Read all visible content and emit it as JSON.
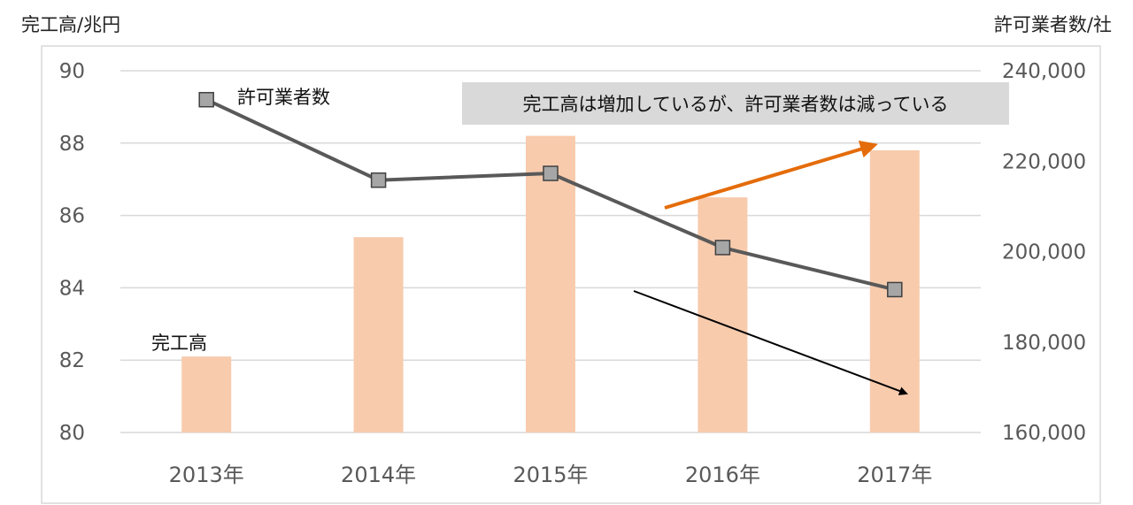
{
  "chart_data": {
    "type": "bar+line",
    "categories": [
      "2013年",
      "2014年",
      "2015年",
      "2016年",
      "2017年"
    ],
    "left_axis_label": "完工高/兆円",
    "right_axis_label": "許可業者数/社",
    "left_ylim": [
      80,
      90
    ],
    "left_ticks": [
      80,
      82,
      84,
      86,
      88,
      90
    ],
    "left_tick_labels": [
      "80",
      "82",
      "84",
      "86",
      "88",
      "90"
    ],
    "right_ylim": [
      160000,
      240000
    ],
    "right_ticks": [
      160000,
      180000,
      200000,
      220000,
      240000
    ],
    "right_tick_labels": [
      "160,000",
      "180,000",
      "200,000",
      "220,000",
      "240,000"
    ],
    "grid": true,
    "series": [
      {
        "name": "完工高",
        "type": "bar",
        "axis": "left",
        "values": [
          82.1,
          85.4,
          88.2,
          86.5,
          87.8
        ],
        "color": "#F8CBAD"
      },
      {
        "name": "許可業者数",
        "type": "line",
        "axis": "right",
        "values": [
          233600,
          215800,
          217300,
          200900,
          191600
        ],
        "color": "#595959",
        "marker_color": "#A6A6A6"
      }
    ],
    "annotation": {
      "text": "完工高は増加しているが、許可業者数は減っている",
      "background": "#D9D9D9"
    },
    "trend_arrows": [
      {
        "color": "#E46C0A",
        "direction": "up"
      },
      {
        "color": "#000000",
        "direction": "down"
      }
    ]
  }
}
